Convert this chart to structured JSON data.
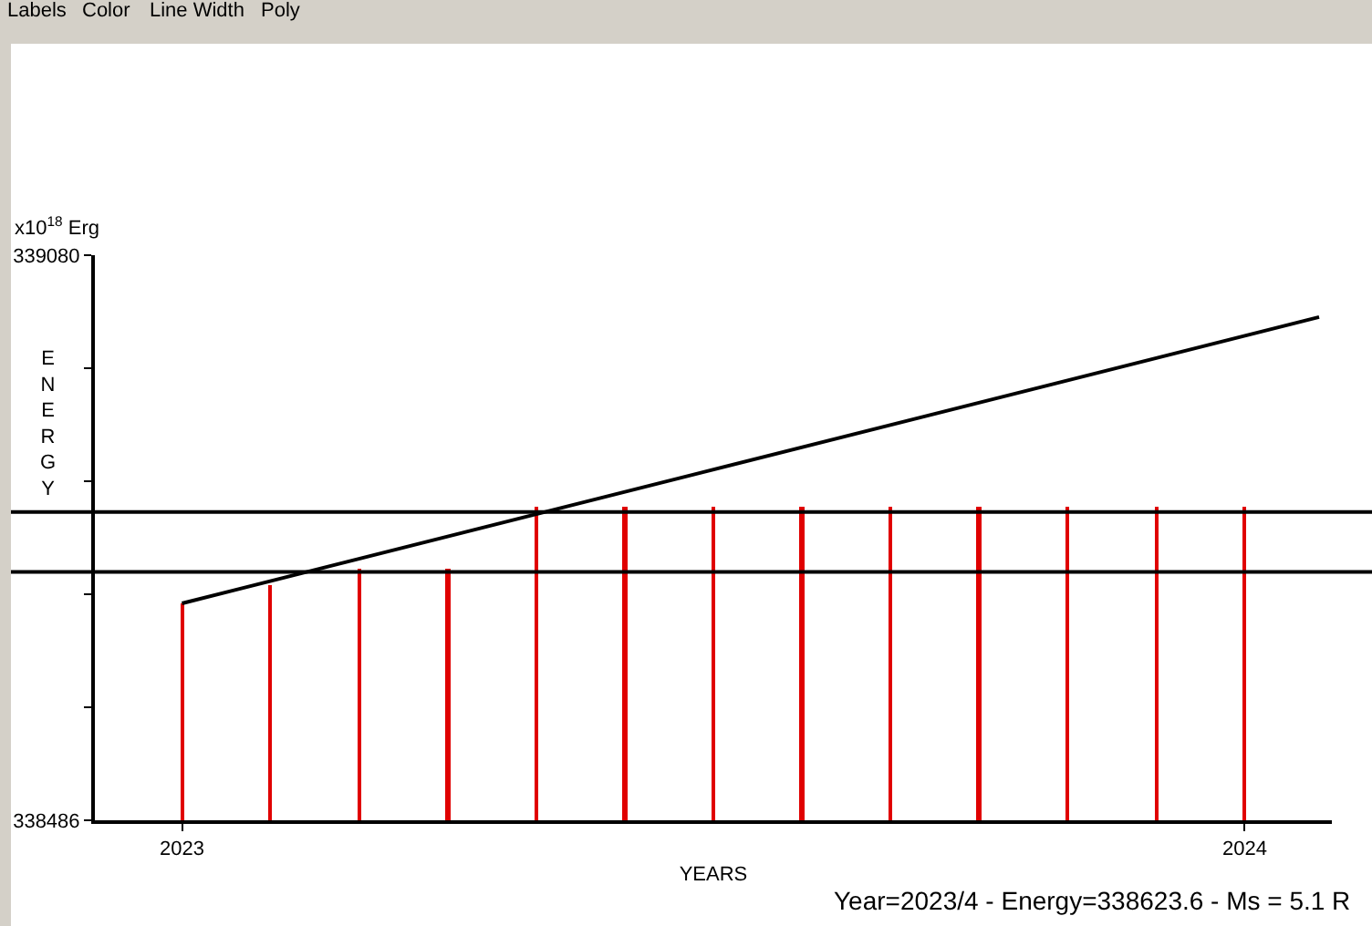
{
  "chart_data": {
    "type": "bar",
    "xlabel": "YEARS",
    "ylabel": "ENERGY",
    "annotations": [
      "Labels",
      "Color",
      "Line Width",
      "Poly",
      "x10$^{18}$ Erg",
      "Year=2023/4 - Energy=338623.6 - Ms = 5.1 R"
    ],
    "series": [
      {
        "color": "#e00000",
        "x": [
          2023,
          2023.0833,
          2023.1667,
          2023.25,
          2023.3333,
          2023.4167,
          2023.5,
          2023.5833,
          2023.6667,
          2023.75,
          2023.8333,
          2023.9167,
          2024
        ],
        "values": [
          338714,
          338733,
          338750,
          338750,
          338816,
          338816,
          338816,
          338816,
          338816,
          338816,
          338816,
          338816,
          338816
        ]
      },
      {
        "type": "line",
        "color": "#000000",
        "x": [
          2023,
          2024.07
        ],
        "values": [
          338714,
          339015
        ]
      }
    ],
    "xlim": [
      2022.918,
      2024.082
    ],
    "xticks": [
      2023,
      2024
    ],
    "ylim": [
      338486,
      339080
    ],
    "yticks": [
      338486,
      {
        "value": 338604.8,
        "label": null
      },
      {
        "value": 338723.6,
        "label": null
      },
      {
        "value": 338842.4,
        "label": null
      },
      {
        "value": 338961.2,
        "label": null
      },
      339080
    ],
    "ref_lines": [
      {
        "axis": "y",
        "value": 338810,
        "color": "#000000"
      },
      {
        "axis": "y",
        "value": 338747,
        "color": "#000000"
      }
    ],
    "grid": false
  }
}
